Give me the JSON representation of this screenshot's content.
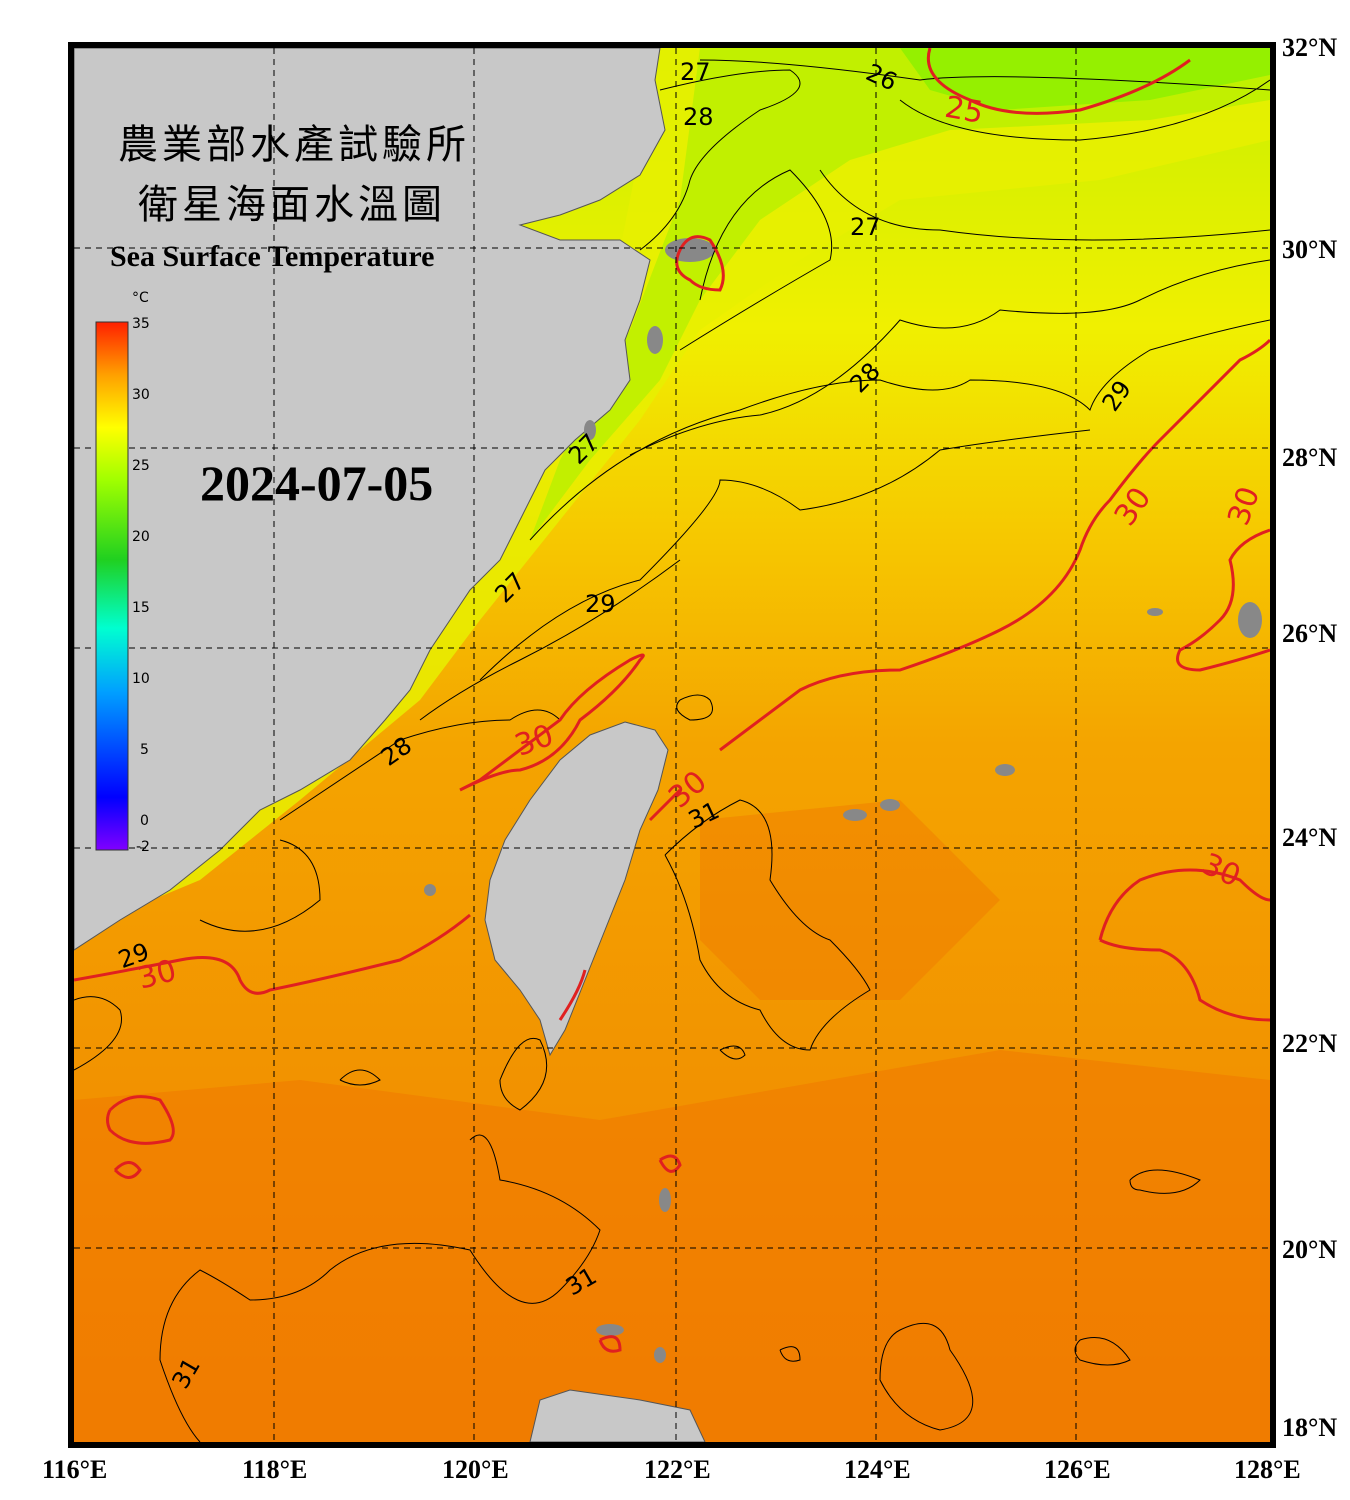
{
  "header": {
    "title_line1": "農業部水產試驗所",
    "title_line2": "衛星海面水溫圖",
    "title_en": "Sea Surface Temperature",
    "date": "2024-07-05"
  },
  "colorbar": {
    "unit": "°C",
    "ticks": [
      "35",
      "30",
      "25",
      "20",
      "15",
      "10",
      "5",
      "0",
      "-2"
    ]
  },
  "axes": {
    "lon_labels": [
      "116°E",
      "118°E",
      "120°E",
      "122°E",
      "124°E",
      "126°E",
      "128°E"
    ],
    "lat_labels": [
      "32°N",
      "30°N",
      "28°N",
      "26°N",
      "24°N",
      "22°N",
      "20°N",
      "18°N"
    ]
  },
  "contour_labels": {
    "black": [
      "27",
      "28",
      "26",
      "27",
      "28",
      "29",
      "29",
      "27",
      "28",
      "27",
      "31",
      "31",
      "31",
      "29"
    ],
    "red": [
      "25",
      "30",
      "30",
      "30",
      "30",
      "30",
      "30"
    ]
  },
  "colors": {
    "land": "#c8c8c8",
    "sea_warm": "#f4a000",
    "sea_hot": "#f07a00",
    "sea_cool": "#e8ec00",
    "sea_cold": "#a8f000",
    "contour_30": "#e02020",
    "frame": "#000000"
  }
}
